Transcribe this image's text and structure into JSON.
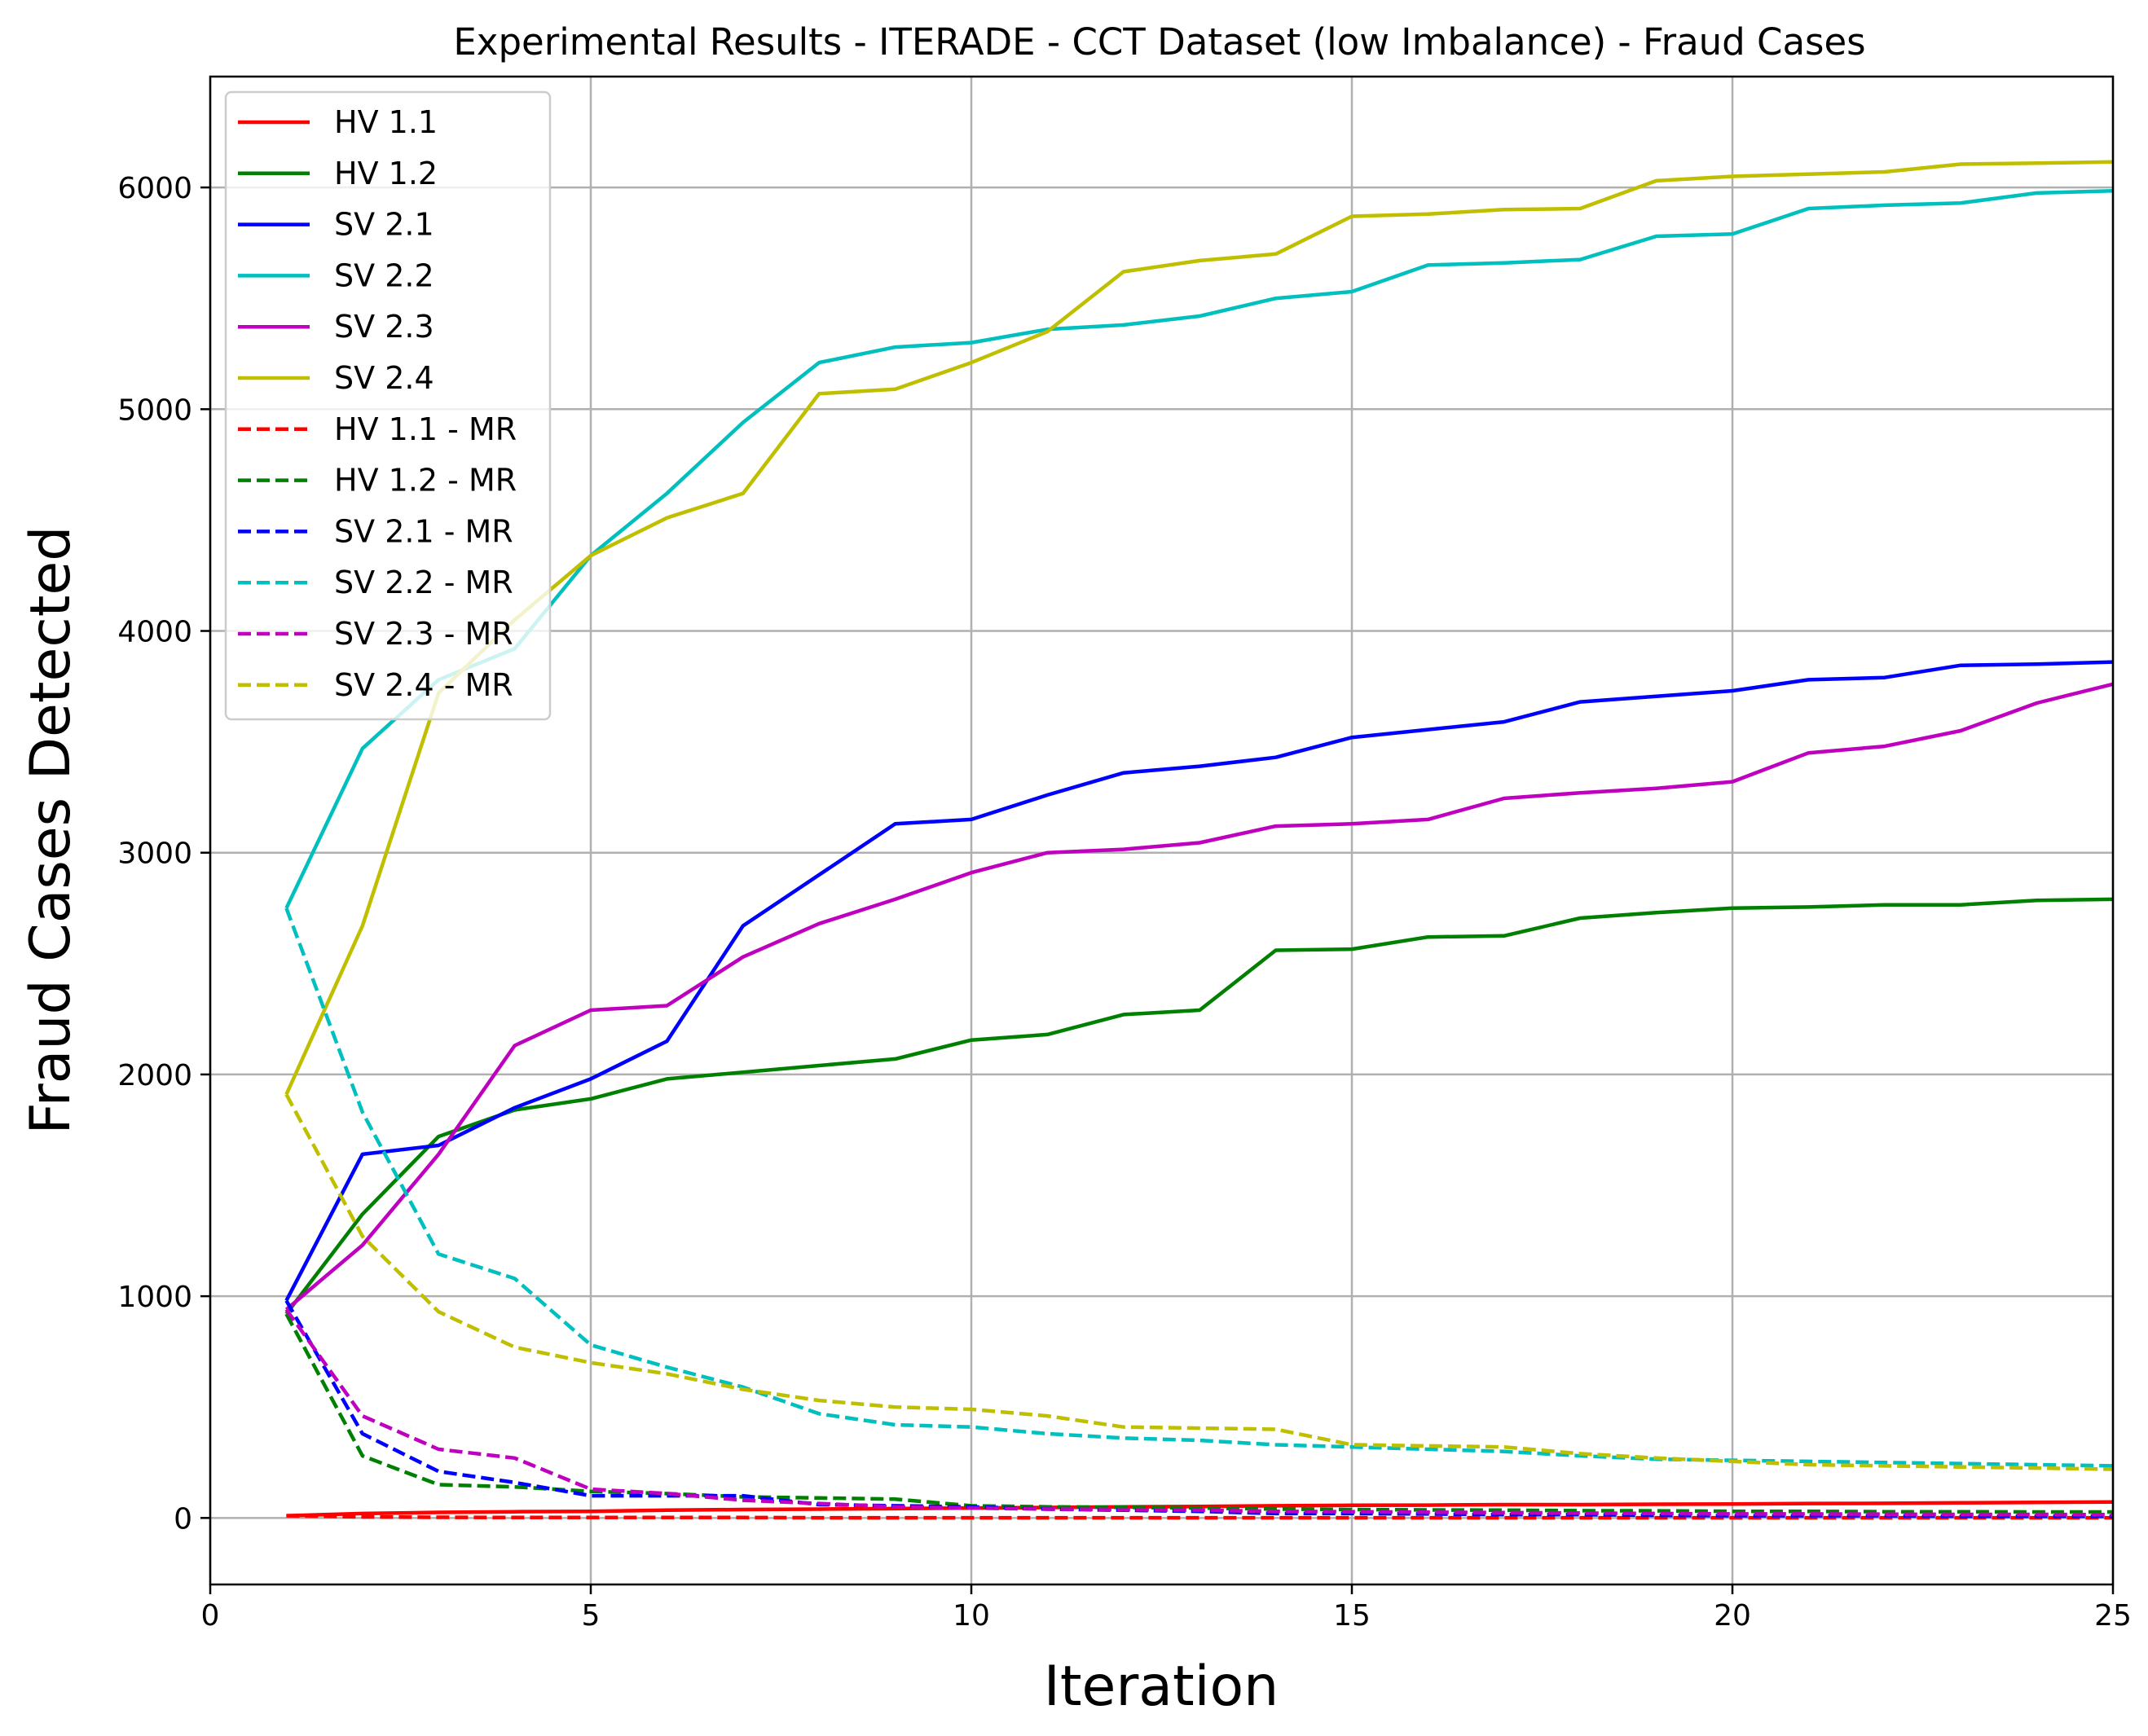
{
  "chart_data": {
    "type": "line",
    "title": "Experimental Results - ITERADE - CCT Dataset (low Imbalance) - Fraud Cases",
    "xlabel": "Iteration",
    "ylabel": "Fraud Cases Detected",
    "xlim": [
      0,
      25
    ],
    "ylim": [
      -300,
      6500
    ],
    "xticks": [
      0,
      5,
      10,
      15,
      20,
      25
    ],
    "yticks": [
      0,
      1000,
      2000,
      3000,
      4000,
      5000,
      6000
    ],
    "grid": true,
    "legend_position": "upper-left",
    "x": [
      1,
      2,
      3,
      4,
      5,
      6,
      7,
      8,
      9,
      10,
      11,
      12,
      13,
      14,
      15,
      16,
      17,
      18,
      19,
      20,
      21,
      22,
      23,
      24,
      25
    ],
    "series": [
      {
        "name": "HV 1.1",
        "color": "#ff0000",
        "dash": "solid",
        "values": [
          10,
          20,
          25,
          28,
          30,
          35,
          38,
          40,
          42,
          45,
          47,
          50,
          52,
          55,
          57,
          58,
          60,
          60,
          62,
          63,
          65,
          66,
          68,
          70,
          72
        ]
      },
      {
        "name": "HV 1.2",
        "color": "#008000",
        "dash": "solid",
        "values": [
          920,
          1370,
          1720,
          1840,
          1890,
          1980,
          2010,
          2040,
          2070,
          2155,
          2180,
          2270,
          2290,
          2560,
          2565,
          2620,
          2625,
          2705,
          2730,
          2750,
          2755,
          2765,
          2765,
          2785,
          2790
        ]
      },
      {
        "name": "SV 2.1",
        "color": "#0000ff",
        "dash": "solid",
        "values": [
          980,
          1640,
          1680,
          1850,
          1980,
          2150,
          2670,
          2900,
          3130,
          3150,
          3260,
          3360,
          3390,
          3430,
          3520,
          3555,
          3590,
          3680,
          3705,
          3730,
          3780,
          3790,
          3845,
          3850,
          3860
        ]
      },
      {
        "name": "SV 2.2",
        "color": "#00bfbf",
        "dash": "solid",
        "values": [
          2750,
          3470,
          3780,
          3920,
          4340,
          4620,
          4940,
          5210,
          5280,
          5300,
          5360,
          5380,
          5420,
          5500,
          5530,
          5650,
          5660,
          5675,
          5780,
          5790,
          5905,
          5920,
          5930,
          5975,
          5985
        ]
      },
      {
        "name": "SV 2.3",
        "color": "#bf00bf",
        "dash": "solid",
        "values": [
          940,
          1230,
          1640,
          2130,
          2290,
          2310,
          2530,
          2680,
          2790,
          2910,
          3000,
          3015,
          3045,
          3120,
          3130,
          3150,
          3245,
          3270,
          3290,
          3320,
          3450,
          3480,
          3550,
          3675,
          3760
        ]
      },
      {
        "name": "SV 2.4",
        "color": "#bfbf00",
        "dash": "solid",
        "values": [
          1910,
          2670,
          3720,
          4050,
          4340,
          4510,
          4620,
          5070,
          5090,
          5210,
          5350,
          5620,
          5670,
          5700,
          5870,
          5880,
          5900,
          5905,
          6030,
          6050,
          6060,
          6070,
          6105,
          6110,
          6115
        ]
      },
      {
        "name": "HV 1.1 - MR",
        "color": "#ff0000",
        "dash": "dashed",
        "values": [
          10,
          5,
          3,
          2,
          2,
          2,
          2,
          1,
          1,
          1,
          1,
          1,
          1,
          1,
          1,
          1,
          1,
          1,
          1,
          1,
          1,
          1,
          1,
          1,
          1
        ]
      },
      {
        "name": "HV 1.2 - MR",
        "color": "#008000",
        "dash": "dashed",
        "values": [
          920,
          280,
          150,
          140,
          120,
          110,
          95,
          90,
          85,
          55,
          50,
          48,
          45,
          40,
          38,
          36,
          35,
          33,
          32,
          30,
          30,
          28,
          28,
          27,
          27
        ]
      },
      {
        "name": "SV 2.1 - MR",
        "color": "#0000ff",
        "dash": "dashed",
        "values": [
          980,
          380,
          210,
          160,
          100,
          100,
          100,
          60,
          55,
          50,
          40,
          35,
          30,
          20,
          20,
          18,
          15,
          15,
          12,
          10,
          10,
          10,
          8,
          8,
          8
        ]
      },
      {
        "name": "SV 2.2 - MR",
        "color": "#00bfbf",
        "dash": "dashed",
        "values": [
          2750,
          1830,
          1190,
          1080,
          780,
          680,
          590,
          470,
          420,
          410,
          380,
          360,
          350,
          330,
          320,
          310,
          300,
          280,
          265,
          260,
          255,
          250,
          245,
          240,
          235
        ]
      },
      {
        "name": "SV 2.3 - MR",
        "color": "#bf00bf",
        "dash": "dashed",
        "values": [
          940,
          460,
          310,
          270,
          130,
          110,
          80,
          65,
          50,
          45,
          40,
          38,
          35,
          30,
          28,
          26,
          24,
          22,
          20,
          18,
          18,
          17,
          16,
          16,
          15
        ]
      },
      {
        "name": "SV 2.4 - MR",
        "color": "#bfbf00",
        "dash": "dashed",
        "values": [
          1910,
          1270,
          930,
          770,
          700,
          650,
          580,
          530,
          500,
          490,
          460,
          410,
          405,
          400,
          330,
          325,
          320,
          290,
          270,
          255,
          240,
          235,
          230,
          225,
          220
        ]
      }
    ]
  }
}
